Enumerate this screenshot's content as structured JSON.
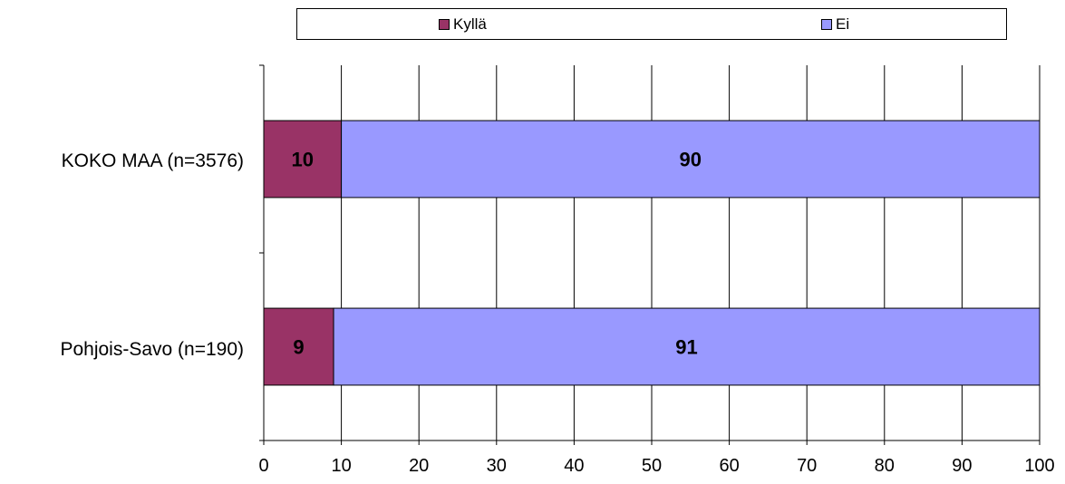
{
  "chart_data": {
    "type": "bar",
    "orientation": "horizontal",
    "stacked": true,
    "categories": [
      "KOKO MAA (n=3576)",
      "Pohjois-Savo (n=190)"
    ],
    "series": [
      {
        "name": "Kyllä",
        "values": [
          10,
          9
        ],
        "color": "#993366"
      },
      {
        "name": "Ei",
        "values": [
          90,
          91
        ],
        "color": "#9999ff"
      }
    ],
    "xlim": [
      0,
      100
    ],
    "xticks": [
      "0",
      "10",
      "20",
      "30",
      "40",
      "50",
      "60",
      "70",
      "80",
      "90",
      "100"
    ],
    "grid": true,
    "legend_position": "top",
    "title": "",
    "xlabel": "",
    "ylabel": ""
  }
}
